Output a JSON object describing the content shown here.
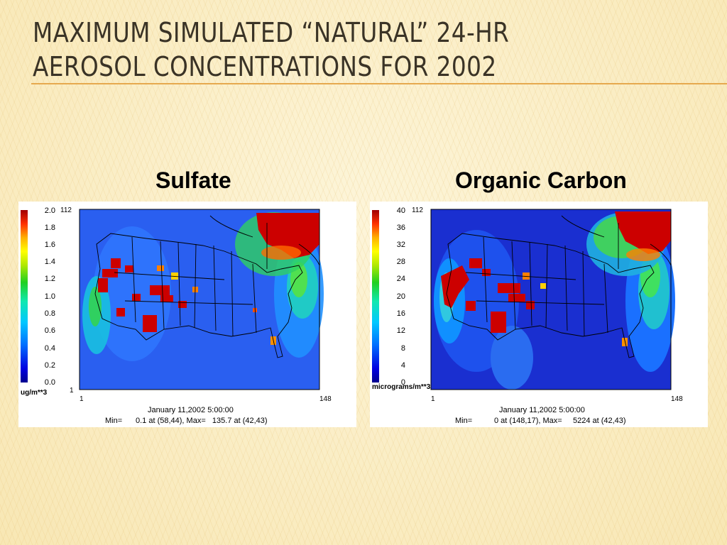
{
  "slide": {
    "title_line1": "Maximum simulated “Natural” 24-hr",
    "title_line2": "aerosol concentrations for 2002"
  },
  "panels": [
    {
      "id": "sulfate",
      "heading": "Sulfate",
      "unit": "ug/m**3",
      "scale_ticks": [
        "2.0",
        "1.8",
        "1.6",
        "1.4",
        "1.2",
        "1.0",
        "0.8",
        "0.6",
        "0.4",
        "0.2",
        "0.0"
      ],
      "y_top": "112",
      "y_bottom": "1",
      "x_left": "1",
      "x_right": "148",
      "date": "January 11,2002 5:00:00",
      "stats_label": "Min=",
      "stats": "0.1 at (58,44), Max=   135.7 at (42,43)",
      "colors": {
        "background_field": "#2a5ff0",
        "hot": "#cc0000"
      }
    },
    {
      "id": "organic-carbon",
      "heading": "Organic Carbon",
      "unit": "micrograms/m**3",
      "scale_ticks": [
        "40",
        "36",
        "32",
        "28",
        "24",
        "20",
        "16",
        "12",
        "8",
        "4",
        "0"
      ],
      "y_top": "112",
      "y_bottom": "",
      "x_left": "1",
      "x_right": "148",
      "date": "January 11,2002 5:00:00",
      "stats_label": "Min=",
      "stats": "0 at (148,17), Max=     5224 at (42,43)",
      "colors": {
        "background_field": "#1a2fd0",
        "hot": "#cc0000"
      }
    }
  ],
  "colorbar_palette": [
    "#000090",
    "#0000d0",
    "#0040ff",
    "#0090ff",
    "#00d0ff",
    "#10e8c0",
    "#20d020",
    "#a0e000",
    "#ffff00",
    "#ffc000",
    "#ff7000",
    "#ff2000",
    "#b00000"
  ]
}
